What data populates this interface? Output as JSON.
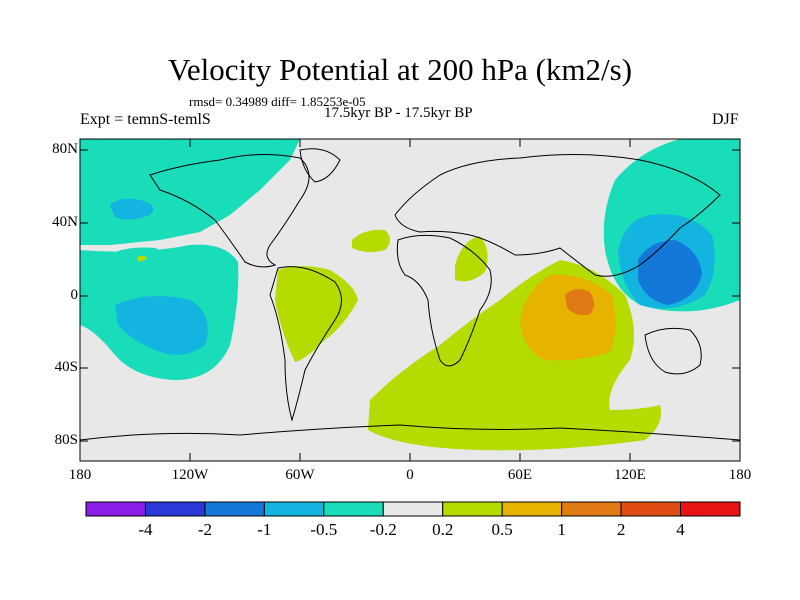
{
  "figure": {
    "title": "Velocity Potential at 200 hPa (km2/s)",
    "stats": "rmsd= 0.34989 diff= 1.85253e-05",
    "period": "17.5kyr BP - 17.5kyr BP",
    "experiment": "Expt = temnS-temlS",
    "season": "DJF"
  },
  "lat_ticks": [
    "80N",
    "40N",
    "0",
    "40S",
    "80S"
  ],
  "lon_ticks": [
    "180",
    "120W",
    "60W",
    "0",
    "60E",
    "120E",
    "180"
  ],
  "colorbar": {
    "labels": [
      "-4",
      "-2",
      "-1",
      "-0.5",
      "-0.2",
      "0.2",
      "0.5",
      "1",
      "2",
      "4"
    ],
    "colors": [
      "#8a1ee6",
      "#2a38d9",
      "#1478d8",
      "#14b4e0",
      "#19dcb9",
      "#e8e8e8",
      "#b4dc00",
      "#e6b400",
      "#e07a14",
      "#e04d14",
      "#e61414"
    ]
  },
  "colors": {
    "land_outline": "#000000",
    "ocean_background": "#e8e8e8",
    "neg_weak": "#19dcb9",
    "neg_mid": "#14b4e0",
    "neg_strong": "#1478d8",
    "pos_weak": "#b4dc00",
    "pos_mid": "#e6b400",
    "pos_strong": "#e07a14"
  }
}
